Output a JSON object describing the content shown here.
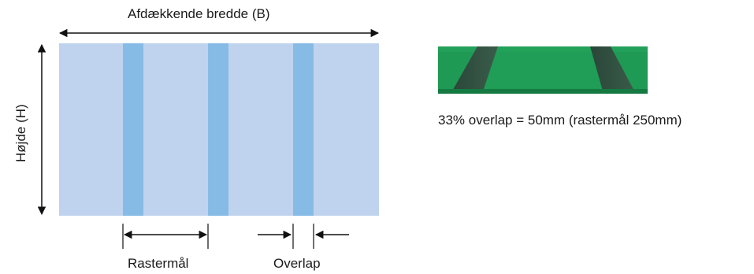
{
  "labels": {
    "width": "Afdækkende bredde (B)",
    "height": "Højde (H)",
    "raster": "Rastermål",
    "overlap": "Overlap"
  },
  "photo": {
    "caption": "33% overlap = 50mm (rastermål 250mm)"
  },
  "colors": {
    "panel": "#bfd3ee",
    "overlap_strip": "#86bbe6",
    "photo_green": "#1f9a55",
    "photo_band": "#2f4f3e",
    "arrow": "#111111"
  }
}
